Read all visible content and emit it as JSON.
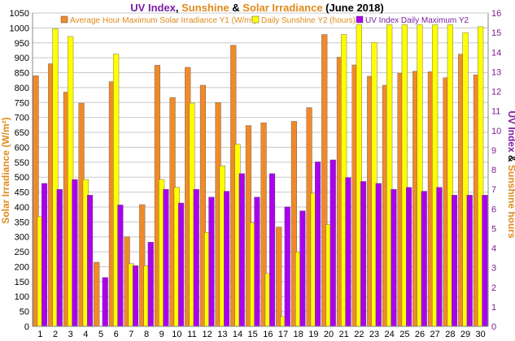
{
  "chart_data": {
    "type": "bar",
    "title_parts": [
      {
        "text": "UV Index",
        "color": "#7a1fa2"
      },
      {
        "text": ", ",
        "color": "#000000"
      },
      {
        "text": "Sunshine",
        "color": "#e08a1a"
      },
      {
        "text": " & ",
        "color": "#000000"
      },
      {
        "text": "Solar Irradiance",
        "color": "#e08a1a"
      },
      {
        "text": " (June 2018)",
        "color": "#000000"
      }
    ],
    "ylabel_left": "Solar Irradiance (W/m²)",
    "ylabel_right_parts": [
      {
        "text": "UV Index",
        "color": "#7a1fa2"
      },
      {
        "text": " & ",
        "color": "#000000"
      },
      {
        "text": "Sunshine hours",
        "color": "#e08a1a"
      }
    ],
    "ylim_left": [
      0,
      1050
    ],
    "ylim_right": [
      0,
      16
    ],
    "left_ticks": [
      0,
      50,
      100,
      150,
      200,
      250,
      300,
      350,
      400,
      450,
      500,
      550,
      600,
      650,
      700,
      750,
      800,
      850,
      900,
      950,
      1000,
      1050
    ],
    "right_ticks": [
      0,
      1,
      2,
      3,
      4,
      5,
      6,
      7,
      8,
      9,
      10,
      11,
      12,
      13,
      14,
      15,
      16
    ],
    "categories": [
      "1",
      "2",
      "3",
      "4",
      "5",
      "6",
      "7",
      "8",
      "9",
      "10",
      "11",
      "12",
      "13",
      "14",
      "15",
      "16",
      "17",
      "18",
      "19",
      "20",
      "21",
      "22",
      "23",
      "24",
      "25",
      "26",
      "27",
      "28",
      "29",
      "30"
    ],
    "series": [
      {
        "name": "Average Hour Maximum Solar Irradiance Y1 (W/m²)",
        "axis": "left",
        "color": "#f08a28",
        "values": [
          840,
          880,
          785,
          748,
          215,
          820,
          300,
          408,
          875,
          767,
          868,
          808,
          750,
          942,
          673,
          682,
          333,
          687,
          733,
          978,
          902,
          876,
          838,
          808,
          848,
          855,
          853,
          833,
          912,
          843
        ]
      },
      {
        "name": "Daily Sunshine Y2 (hours)",
        "axis": "right",
        "color": "#ffff00",
        "values": [
          5.6,
          15.2,
          14.8,
          7.5,
          0.0,
          13.9,
          3.2,
          3.1,
          7.5,
          7.1,
          11.4,
          4.8,
          8.2,
          9.3,
          5.3,
          2.7,
          0.5,
          3.8,
          6.8,
          5.2,
          14.9,
          15.4,
          14.5,
          15.4,
          15.4,
          15.4,
          15.4,
          15.4,
          15.0,
          15.3
        ]
      },
      {
        "name": "UV Index Daily Maximum Y2",
        "axis": "right",
        "color": "#aa00ee",
        "values": [
          7.3,
          7.0,
          7.5,
          6.7,
          2.5,
          6.2,
          3.1,
          4.3,
          7.0,
          6.3,
          7.0,
          6.6,
          6.9,
          7.8,
          6.6,
          7.8,
          6.1,
          5.9,
          8.4,
          8.5,
          7.6,
          7.4,
          7.3,
          7.0,
          7.1,
          6.9,
          7.1,
          6.7,
          6.7,
          6.7
        ]
      }
    ],
    "legend_position": "top"
  }
}
